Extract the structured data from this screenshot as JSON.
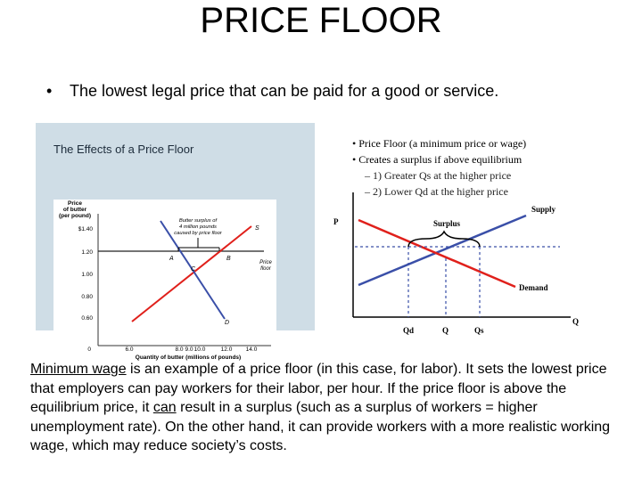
{
  "slide": {
    "title": "PRICE FLOOR",
    "bullet": "The lowest legal price that can be paid for a good or service.",
    "bullet_glyph": "•"
  },
  "left_figure": {
    "title": "The Effects of a Price Floor",
    "y_label_lines": [
      "Price",
      "of butter",
      "(per pound)"
    ],
    "y_ticks": [
      "$1.40",
      "1.20",
      "1.00",
      "0.80",
      "0.60"
    ],
    "x_ticks": [
      "6.0",
      "8.0",
      "9.0",
      "10.0",
      "12.0",
      "14.0"
    ],
    "origin": "0",
    "x_label": "Quantity of butter (millions of pounds)",
    "annotation_lines": [
      "Butter surplus of",
      "4 million pounds",
      "caused by price floor"
    ],
    "price_floor_label_lines": [
      "Price",
      "floor"
    ],
    "point_labels": {
      "a": "A",
      "b": "B",
      "c": "C",
      "d": "D",
      "s": "S"
    }
  },
  "right_bullets": {
    "glyph": "•",
    "b1": "Price Floor (a minimum price or wage)",
    "b2": "Creates a surplus if above equilibrium",
    "s1": "– 1) Greater Qs at the higher price",
    "s2": "– 2) Lower Qd at the higher price"
  },
  "right_figure": {
    "p_axis": "P",
    "q_axis": "Q",
    "surplus": "Surplus",
    "supply": "Supply",
    "demand": "Demand",
    "qd": "Qd",
    "q": "Q",
    "qs": "Qs"
  },
  "body": {
    "p1": "Minimum wage",
    "p2": " is an example of a price floor (in this case, for labor). It sets the lowest price that employers can pay workers for their labor, per hour. If the price floor is above the equilibrium price, it ",
    "p3": "can",
    "p4": " result in a surplus (such as a surplus of workers = higher unemployment rate). On the other hand, it can provide workers with a more realistic working wage, which may reduce society’s costs."
  },
  "colors": {
    "supply": "#e0201b",
    "demand": "#3a4fa8",
    "panel": "#cfdde6"
  }
}
